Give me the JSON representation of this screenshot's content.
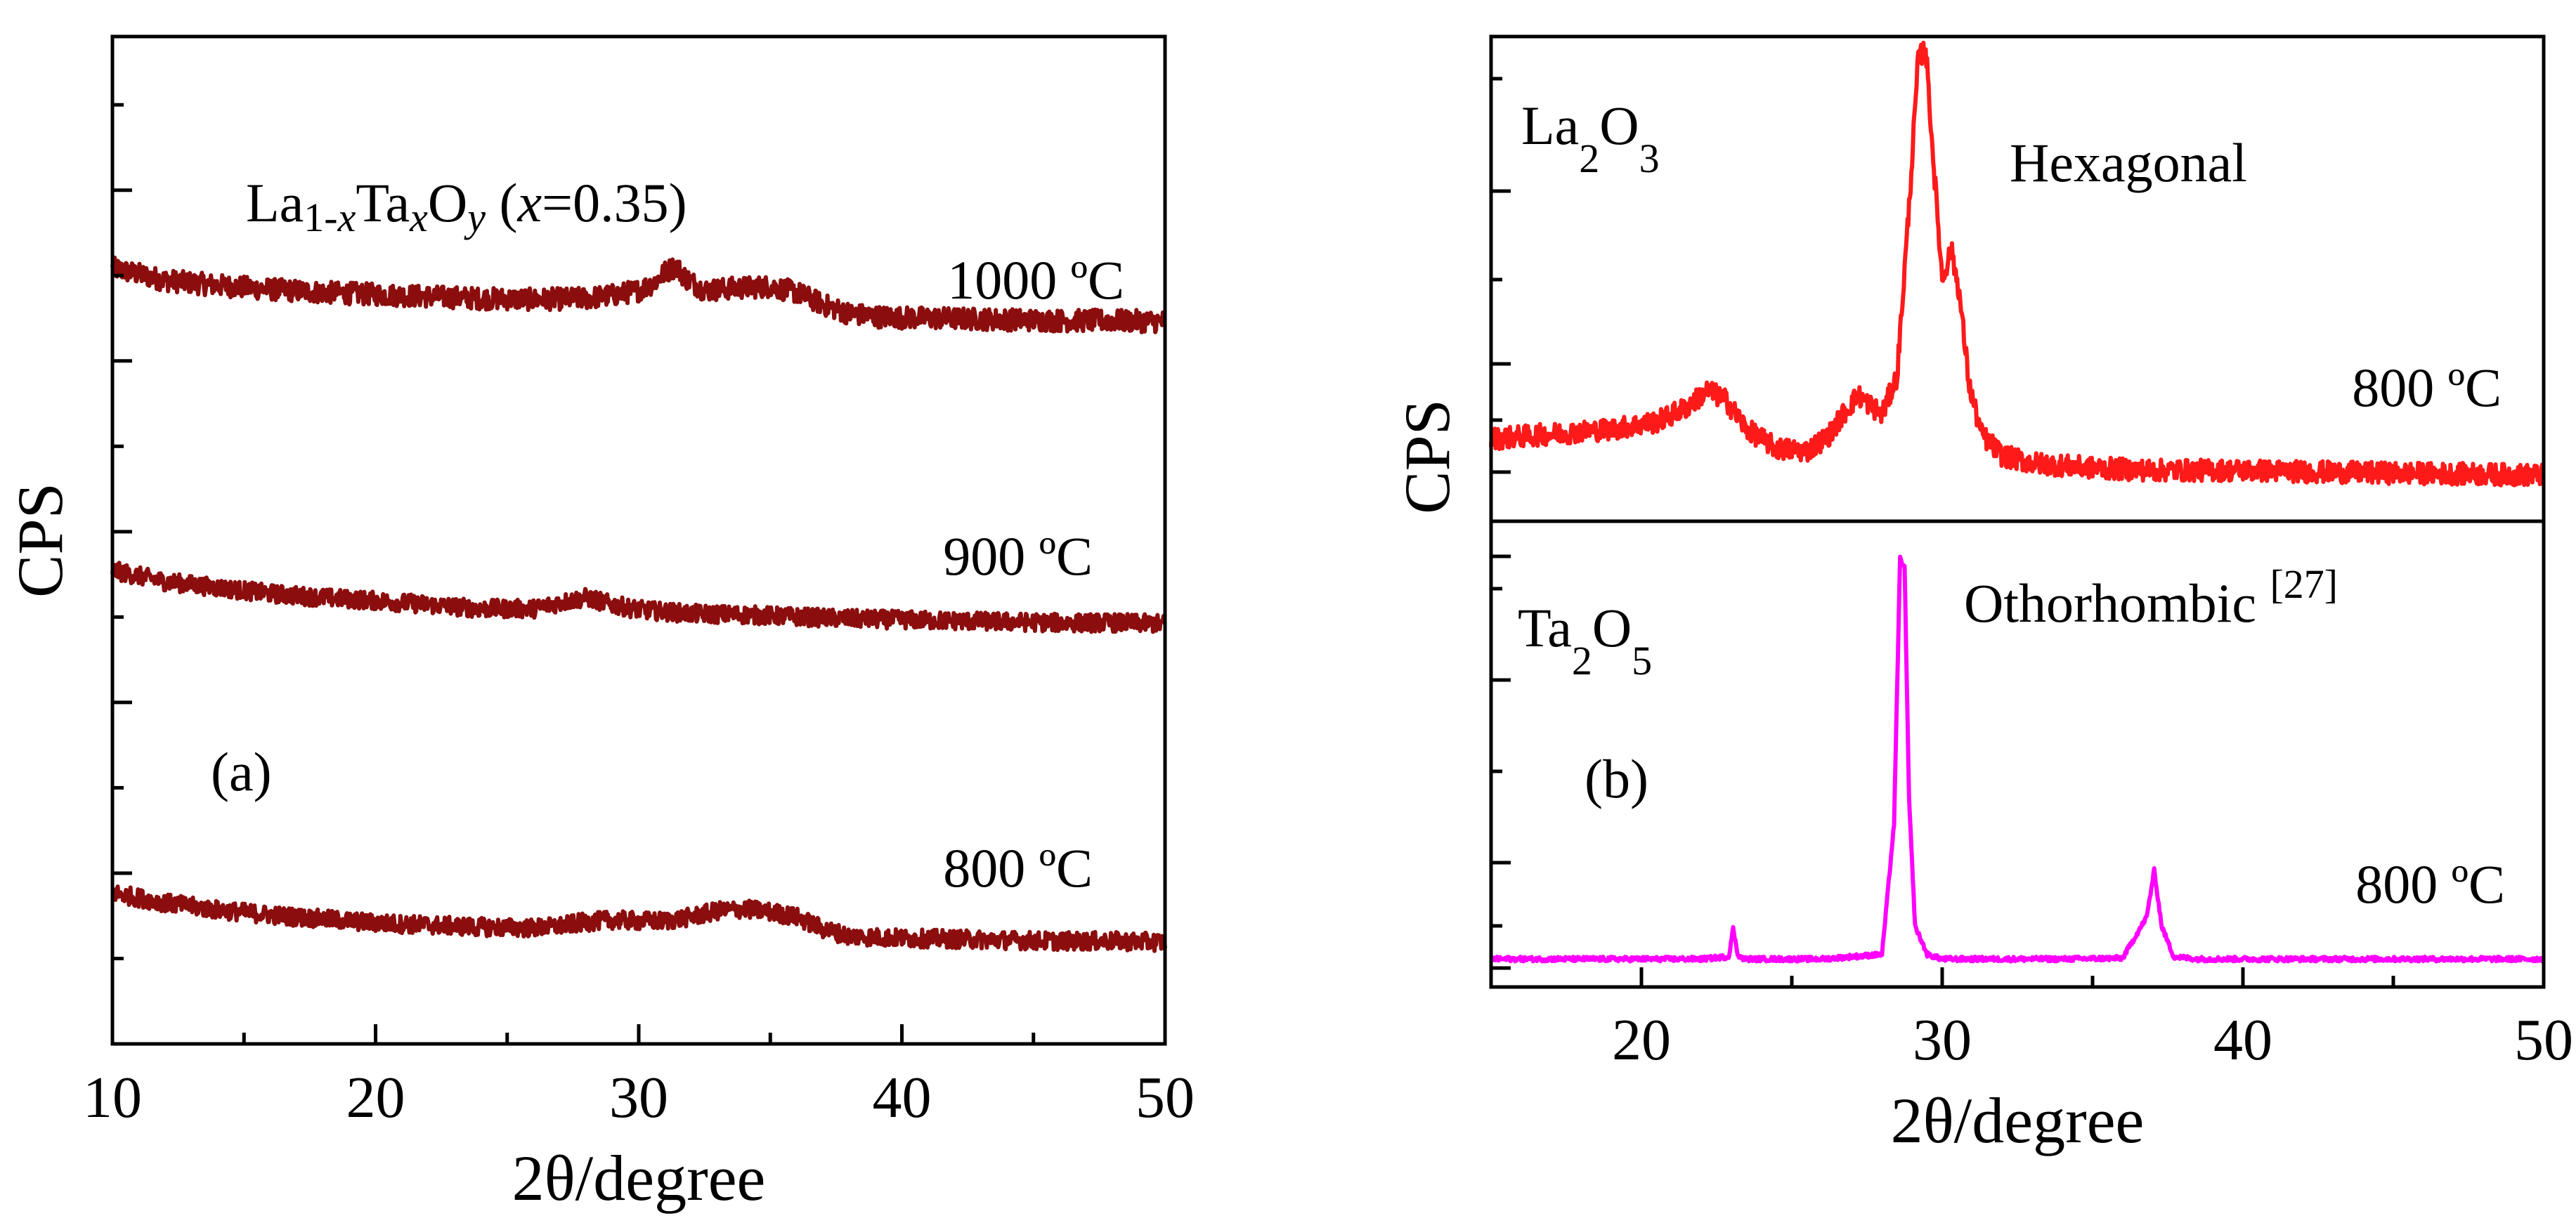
{
  "figure": {
    "colors": {
      "panel_a": "#8b0d0d",
      "la2o3": "#ff1a1a",
      "ta2o5": "#ff00ff",
      "axis": "#000000"
    }
  },
  "chart_data": [
    {
      "type": "line",
      "panel": "(a)",
      "title": "La1-xTaxOy (x=0.35)",
      "title_parts": {
        "la": "La",
        "sub1": "1-",
        "x1": "x",
        "ta": "Ta",
        "x2": "x",
        "o": "O",
        "y": "y",
        "paren_open": " (",
        "x3": "x",
        "eq": "=0.35)"
      },
      "xlabel": "2θ/degree",
      "ylabel": "CPS",
      "xlim": [
        10,
        50
      ],
      "ylim": [
        0,
        10
      ],
      "xticks": [
        "10",
        "20",
        "30",
        "40",
        "50"
      ],
      "y_ticks_labeled": false,
      "series": [
        {
          "name": "1000 ºC",
          "label_text": "1000 ºC",
          "color": "#8b0d0d",
          "x": [
            10,
            12,
            14,
            16,
            18,
            20,
            22,
            24,
            26,
            28,
            29,
            30,
            30.6,
            31,
            31.4,
            31.8,
            32.5,
            33.5,
            35,
            36,
            37,
            38,
            39,
            40,
            42,
            44,
            46,
            48,
            50
          ],
          "y": [
            7.7,
            7.58,
            7.53,
            7.49,
            7.46,
            7.44,
            7.42,
            7.4,
            7.39,
            7.4,
            7.43,
            7.48,
            7.56,
            7.66,
            7.72,
            7.6,
            7.48,
            7.5,
            7.52,
            7.46,
            7.34,
            7.25,
            7.22,
            7.21,
            7.2,
            7.19,
            7.18,
            7.18,
            7.17
          ]
        },
        {
          "name": "900 ºC",
          "label_text": "900 ºC",
          "color": "#8b0d0d",
          "x": [
            10,
            12,
            14,
            16,
            18,
            20,
            22,
            24,
            26,
            27,
            28,
            29,
            30,
            32,
            34,
            36,
            38,
            40,
            42,
            44,
            46,
            48,
            50
          ],
          "y": [
            4.7,
            4.59,
            4.53,
            4.47,
            4.43,
            4.4,
            4.36,
            4.32,
            4.32,
            4.38,
            4.43,
            4.36,
            4.31,
            4.27,
            4.26,
            4.24,
            4.22,
            4.21,
            4.2,
            4.19,
            4.18,
            4.18,
            4.17
          ]
        },
        {
          "name": "800 ºC",
          "label_text": "800 ºC",
          "color": "#8b0d0d",
          "x": [
            10,
            12,
            14,
            16,
            18,
            20,
            22,
            24,
            26,
            27,
            28,
            29,
            30,
            31,
            32,
            33,
            34,
            35,
            36,
            37,
            38,
            40,
            42,
            44,
            46,
            48,
            50
          ],
          "y": [
            1.5,
            1.4,
            1.33,
            1.28,
            1.24,
            1.2,
            1.18,
            1.16,
            1.15,
            1.17,
            1.21,
            1.23,
            1.22,
            1.22,
            1.26,
            1.32,
            1.34,
            1.31,
            1.26,
            1.14,
            1.07,
            1.05,
            1.04,
            1.03,
            1.02,
            1.02,
            1.01
          ]
        }
      ]
    },
    {
      "type": "line",
      "panel": "(b)",
      "xlabel": "2θ/degree",
      "ylabel": "CPS",
      "xlim": [
        15,
        50
      ],
      "xticks": [
        "20",
        "30",
        "40",
        "50"
      ],
      "y_ticks_labeled": false,
      "subplots": [
        {
          "name": "La2O3",
          "formula": {
            "el1": "La",
            "n1": "2",
            "el2": "O",
            "n2": "3"
          },
          "phase": "Hexagonal",
          "temperature": "800 ºC",
          "color": "#ff1a1a",
          "ylim": [
            0,
            10
          ],
          "x": [
            15,
            17,
            19,
            20.5,
            21.5,
            22.2,
            22.8,
            23.5,
            24.5,
            25.5,
            26.2,
            26.7,
            27.2,
            27.6,
            28.0,
            28.5,
            28.9,
            29.2,
            29.45,
            29.7,
            30.0,
            30.3,
            30.55,
            30.9,
            31.3,
            32,
            33,
            35,
            37,
            40,
            44,
            47,
            50
          ],
          "y": [
            1.7,
            1.8,
            1.9,
            2.05,
            2.35,
            2.7,
            2.5,
            1.9,
            1.5,
            1.45,
            1.75,
            2.2,
            2.6,
            2.4,
            2.2,
            3.0,
            6.5,
            9.5,
            9.8,
            7.5,
            5.0,
            5.6,
            4.8,
            2.8,
            1.8,
            1.35,
            1.2,
            1.1,
            1.05,
            1.05,
            1.0,
            0.98,
            0.95
          ]
        },
        {
          "name": "Ta2O5",
          "formula": {
            "el1": "Ta",
            "n1": "2",
            "el2": "O",
            "n2": "5"
          },
          "phase": "Othorhombic",
          "reference": "[27]",
          "temperature": "800 ºC",
          "color": "#ff00ff",
          "ylim": [
            0,
            10
          ],
          "x": [
            15,
            18,
            20,
            22,
            22.9,
            23.05,
            23.2,
            23.4,
            24,
            26,
            28,
            28.4,
            28.6,
            28.75,
            28.9,
            29.1,
            29.5,
            30,
            32,
            34,
            36,
            36.8,
            37.05,
            37.3,
            37.7,
            38.5,
            40,
            45,
            50
          ],
          "y": [
            0.6,
            0.6,
            0.6,
            0.6,
            0.65,
            1.25,
            0.7,
            0.6,
            0.6,
            0.6,
            0.7,
            3.5,
            9.2,
            9.0,
            4.0,
            1.3,
            0.7,
            0.6,
            0.6,
            0.6,
            0.62,
            1.5,
            2.5,
            1.3,
            0.65,
            0.6,
            0.6,
            0.6,
            0.6
          ]
        }
      ]
    }
  ]
}
